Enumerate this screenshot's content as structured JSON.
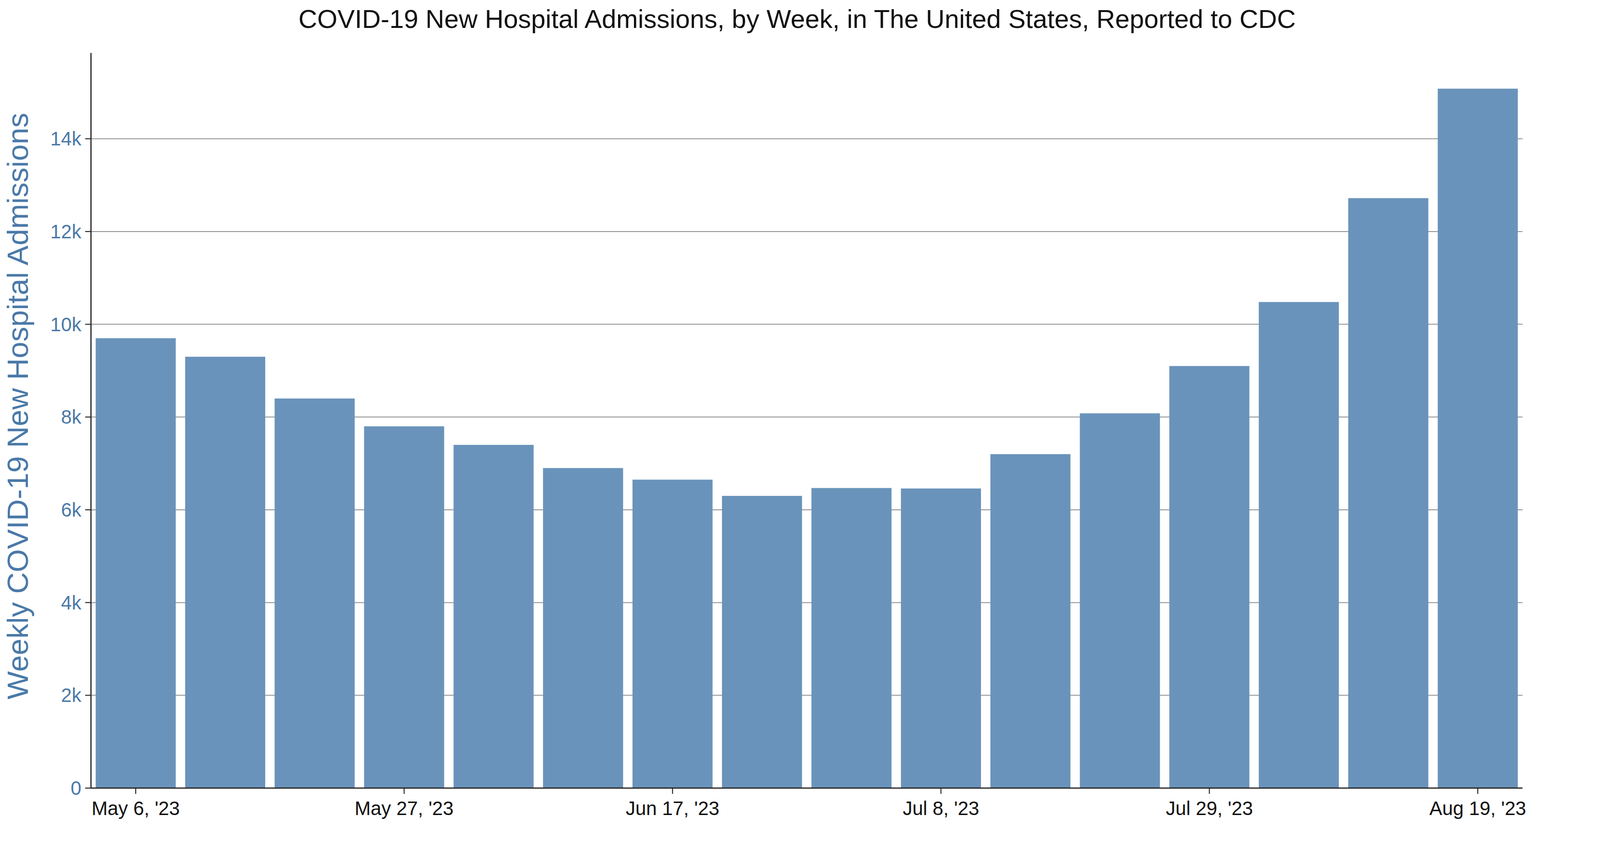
{
  "chart_data": {
    "type": "bar",
    "title": "COVID-19 New Hospital Admissions, by Week, in The United States, Reported to CDC",
    "y_label": "Weekly COVID-19 New Hospital Admissions",
    "categories": [
      "May 6, '23",
      null,
      null,
      "May 27, '23",
      null,
      null,
      "Jun 17, '23",
      null,
      null,
      "Jul 8, '23",
      null,
      null,
      "Jul 29, '23",
      null,
      null,
      "Aug 19, '23"
    ],
    "values": [
      9700,
      9300,
      8400,
      7800,
      7400,
      6900,
      6650,
      6300,
      6470,
      6460,
      7200,
      8080,
      9100,
      10480,
      12720,
      15080
    ],
    "color": "#6a93bb",
    "ylim": [
      0,
      15850
    ],
    "yticks": [
      0,
      {
        "value": 2000,
        "label": "2k"
      },
      {
        "value": 4000,
        "label": "4k"
      },
      {
        "value": 6000,
        "label": "6k"
      },
      {
        "value": 8000,
        "label": "8k"
      },
      {
        "value": 10000,
        "label": "10k"
      },
      {
        "value": 12000,
        "label": "12k"
      },
      {
        "value": 14000,
        "label": "14k"
      }
    ],
    "grid": true
  }
}
